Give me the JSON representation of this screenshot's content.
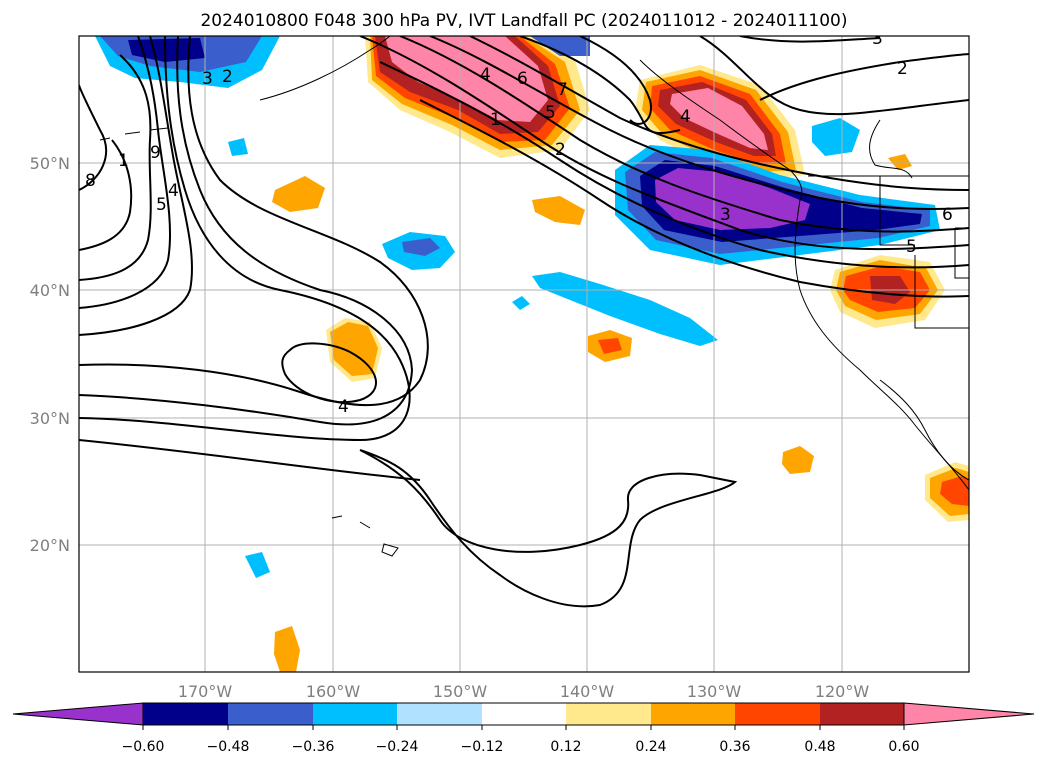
{
  "title": "2024010800 F048 300 hPa PV, IVT Landfall PC (2024011012 - 2024011100)",
  "lon_ticks": [
    "170°W",
    "160°W",
    "150°W",
    "140°W",
    "130°W",
    "120°W"
  ],
  "lat_ticks": [
    "50°N",
    "40°N",
    "30°N",
    "20°N"
  ],
  "colorbar": {
    "tick_labels": [
      "−0.60",
      "−0.48",
      "−0.36",
      "−0.24",
      "−0.12",
      "0.12",
      "0.24",
      "0.36",
      "0.48",
      "0.60"
    ],
    "colors": [
      "#9932cc",
      "#00008b",
      "#3a5fcd",
      "#00bfff",
      "#b0e2ff",
      "#ffffff",
      "#ffe98c",
      "#ffa500",
      "#ff4500",
      "#b22222",
      "#ff85a8"
    ]
  },
  "contour_labels": [
    "3",
    "2",
    "2",
    "9",
    "8",
    "1",
    "5",
    "4",
    "4",
    "6",
    "7",
    "5",
    "1",
    "2",
    "4",
    "3",
    "6",
    "5",
    "4",
    "3"
  ]
}
